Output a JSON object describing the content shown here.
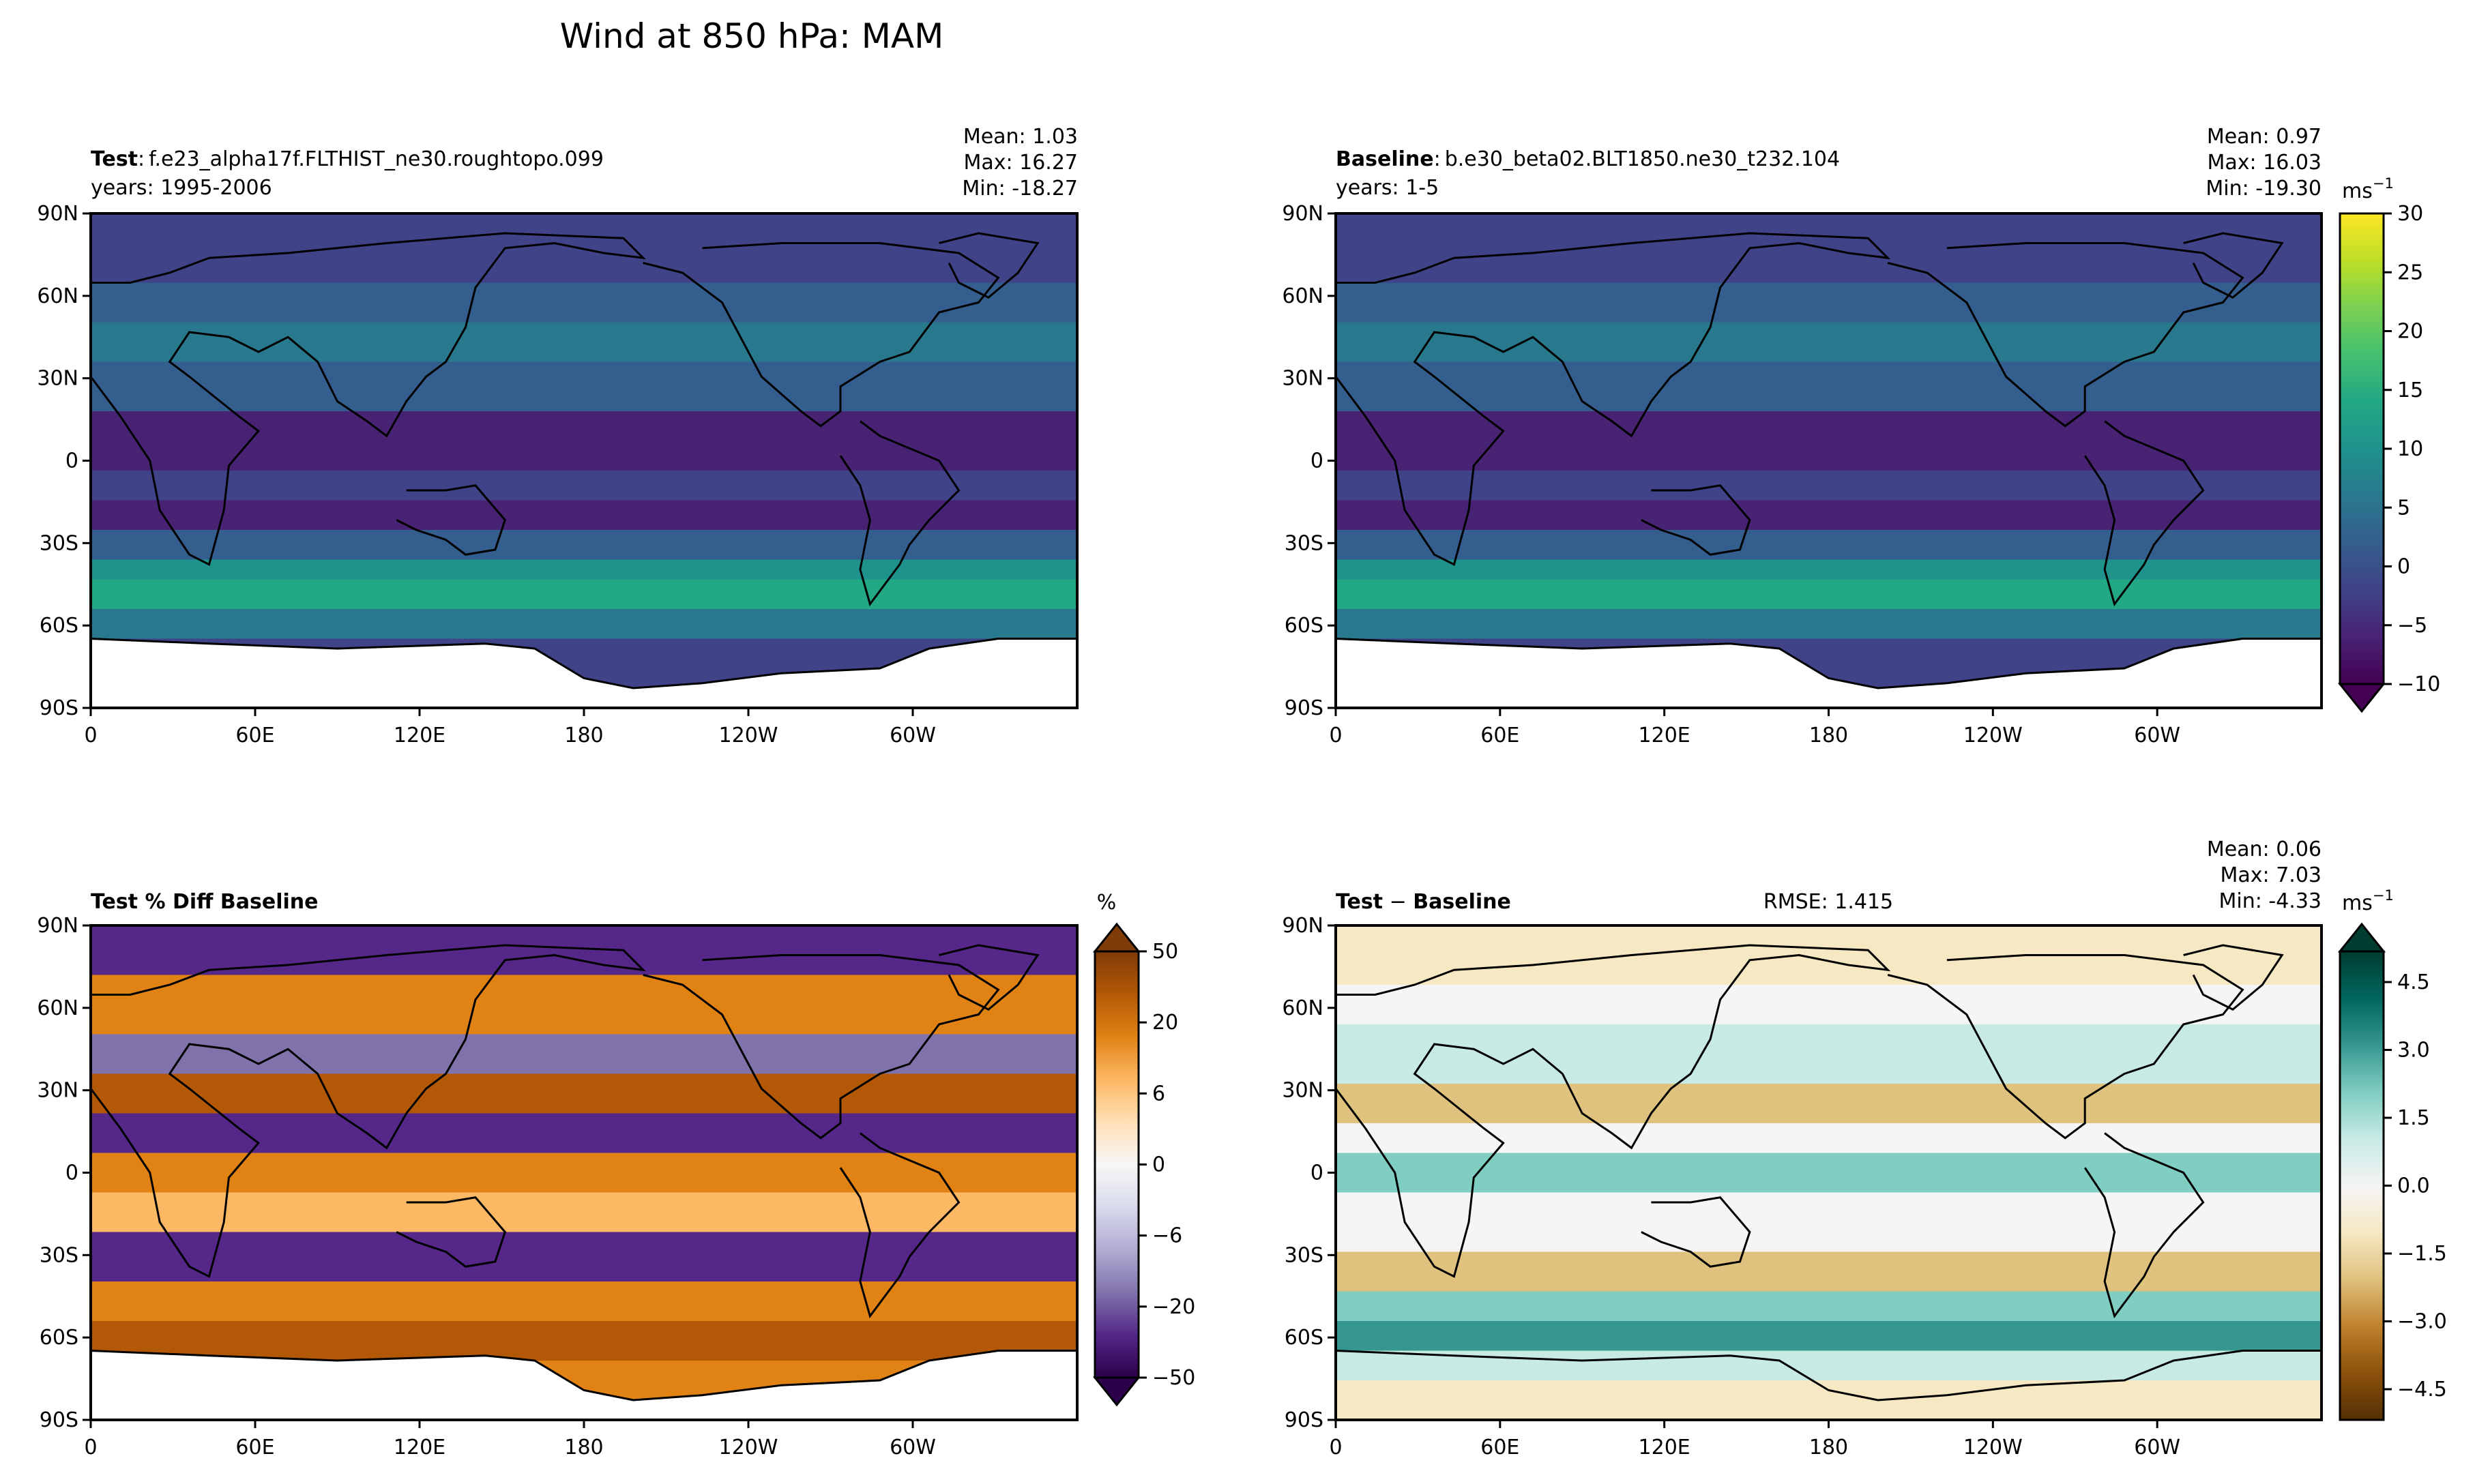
{
  "figure": {
    "title": "Wind at 850 hPa: MAM"
  },
  "axes": {
    "lat_ticks": [
      "90N",
      "60N",
      "30N",
      "0",
      "30S",
      "60S",
      "90S"
    ],
    "lon_ticks": [
      "0",
      "60E",
      "120E",
      "180",
      "120W",
      "60W"
    ]
  },
  "panels": {
    "test": {
      "title_bold": "Test",
      "title_sep": ":",
      "case": "f.e23_alpha17f.FLTHIST_ne30.roughtopo.099",
      "years": "years: 1995-2006",
      "mean": "Mean:  1.03",
      "max": "Max: 16.27",
      "min": "Min: -18.27"
    },
    "baseline": {
      "title_bold": "Baseline",
      "title_sep": ":",
      "case": "b.e30_beta02.BLT1850.ne30_t232.104",
      "years": "years: 1-5",
      "mean": "Mean:  0.97",
      "max": "Max: 16.03",
      "min": "Min: -19.30"
    },
    "pct_diff": {
      "title": "Test % Diff Baseline"
    },
    "diff": {
      "title_a": "Test",
      "title_op": " − ",
      "title_b": "Baseline",
      "rmse": "RMSE: 1.415",
      "mean": "Mean:  0.06",
      "max": "Max:  7.03",
      "min": "Min: -4.33"
    }
  },
  "colorbars": {
    "wind": {
      "unit": "ms",
      "unit_sup": "−1",
      "ticks": [
        "30",
        "25",
        "20",
        "15",
        "10",
        "5",
        "0",
        "−5",
        "−10"
      ]
    },
    "pct": {
      "unit": "%",
      "ticks": [
        "50",
        "20",
        "6",
        "0",
        "−6",
        "−20",
        "−50"
      ]
    },
    "diff": {
      "unit": "ms",
      "unit_sup": "−1",
      "ticks": [
        "4.5",
        "3.0",
        "1.5",
        "0.0",
        "−1.5",
        "−3.0",
        "−4.5"
      ]
    }
  },
  "colors": {
    "viridis": [
      "#440154",
      "#482374",
      "#404387",
      "#345e8d",
      "#29798e",
      "#1f928c",
      "#22a884",
      "#44bf70",
      "#7ad151",
      "#bddf26",
      "#fde725"
    ],
    "puor": [
      "#2d004b",
      "#542788",
      "#8073ac",
      "#b2abd2",
      "#d8daeb",
      "#f7f7f7",
      "#fee0b6",
      "#fdb863",
      "#e08214",
      "#b35806",
      "#7f3b08"
    ],
    "brbg": [
      "#543005",
      "#8c510a",
      "#bf812d",
      "#dfc27d",
      "#f6e8c3",
      "#f5f5f5",
      "#c7eae5",
      "#80cdc1",
      "#35978f",
      "#01665e",
      "#003c30"
    ]
  }
}
